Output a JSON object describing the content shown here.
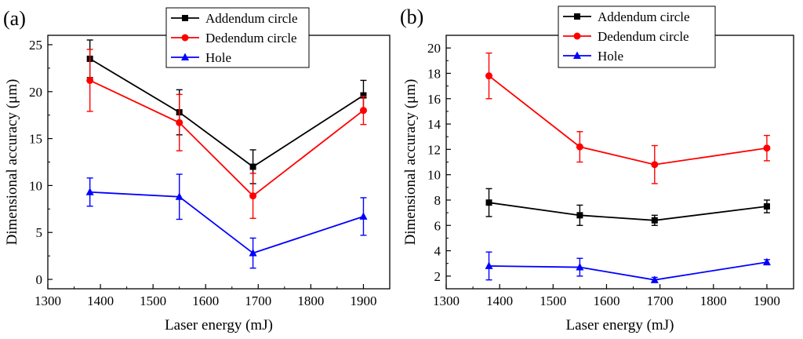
{
  "chart_data": [
    {
      "type": "line",
      "panel_label": "(a)",
      "xlabel": "Laser energy (mJ)",
      "ylabel": "Dimensional accuracy (μm)",
      "xlim": [
        1300,
        1950
      ],
      "ylim": [
        -1,
        26
      ],
      "xticks": [
        1300,
        1400,
        1500,
        1600,
        1700,
        1800,
        1900
      ],
      "yticks": [
        0,
        5,
        10,
        15,
        20,
        25
      ],
      "x": [
        1380,
        1550,
        1690,
        1900
      ],
      "legend_position": "top-right",
      "series": [
        {
          "name": "Addendum circle",
          "color": "#000000",
          "marker": "square",
          "values": [
            23.5,
            17.8,
            12.0,
            19.6
          ],
          "errors": [
            2.0,
            2.4,
            1.8,
            1.6
          ]
        },
        {
          "name": "Dedendum circle",
          "color": "#ff0000",
          "marker": "circle",
          "values": [
            21.2,
            16.7,
            8.9,
            18.0
          ],
          "errors": [
            3.3,
            3.0,
            2.4,
            1.5
          ]
        },
        {
          "name": "Hole",
          "color": "#0000ff",
          "marker": "triangle",
          "values": [
            9.3,
            8.8,
            2.8,
            6.7
          ],
          "errors": [
            1.5,
            2.4,
            1.6,
            2.0
          ]
        }
      ]
    },
    {
      "type": "line",
      "panel_label": "(b)",
      "xlabel": "Laser energy (mJ)",
      "ylabel": "Dimensional accuracy (μm)",
      "xlim": [
        1300,
        1950
      ],
      "ylim": [
        1,
        21
      ],
      "xticks": [
        1300,
        1400,
        1500,
        1600,
        1700,
        1800,
        1900
      ],
      "yticks": [
        2,
        4,
        6,
        8,
        10,
        12,
        14,
        16,
        18,
        20
      ],
      "x": [
        1380,
        1550,
        1690,
        1900
      ],
      "legend_position": "top-right",
      "series": [
        {
          "name": "Addendum circle",
          "color": "#000000",
          "marker": "square",
          "values": [
            7.8,
            6.8,
            6.4,
            7.5
          ],
          "errors": [
            1.1,
            0.8,
            0.4,
            0.5
          ]
        },
        {
          "name": "Dedendum circle",
          "color": "#ff0000",
          "marker": "circle",
          "values": [
            17.8,
            12.2,
            10.8,
            12.1
          ],
          "errors": [
            1.8,
            1.2,
            1.5,
            1.0
          ]
        },
        {
          "name": "Hole",
          "color": "#0000ff",
          "marker": "triangle",
          "values": [
            2.8,
            2.7,
            1.7,
            3.1
          ],
          "errors": [
            1.1,
            0.7,
            0.2,
            0.2
          ]
        }
      ]
    }
  ]
}
